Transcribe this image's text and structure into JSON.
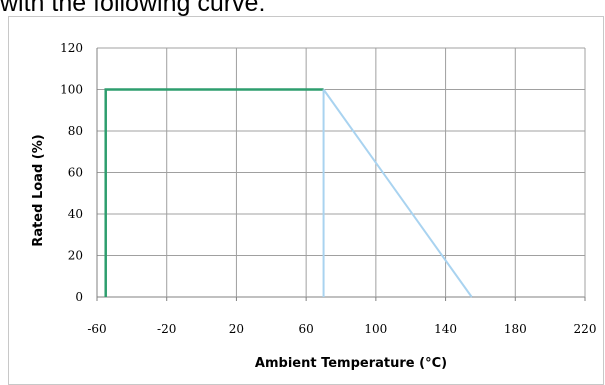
{
  "caption": {
    "text": "with the following curve:"
  },
  "chart_data": {
    "type": "line",
    "xlabel": "Ambient Temperature (°C)",
    "ylabel": "Rated Load (%)",
    "xlim": [
      -60,
      220
    ],
    "ylim": [
      0,
      120
    ],
    "x_ticks": [
      -60,
      -20,
      20,
      60,
      100,
      140,
      180,
      220
    ],
    "y_ticks": [
      0,
      20,
      40,
      60,
      80,
      100,
      120
    ],
    "grid": true,
    "legend": "none",
    "series": [
      {
        "color": "#2e9e6e",
        "points": [
          [
            -55,
            0
          ],
          [
            -55,
            100
          ],
          [
            70,
            100
          ]
        ]
      },
      {
        "color": "#a9d3f0",
        "points": [
          [
            70,
            100
          ],
          [
            70,
            0
          ]
        ]
      },
      {
        "color": "#a9d3f0",
        "points": [
          [
            70,
            100
          ],
          [
            155,
            0
          ]
        ]
      }
    ],
    "colors": {
      "grid": "#a0a0a0",
      "axis": "#808080"
    }
  }
}
